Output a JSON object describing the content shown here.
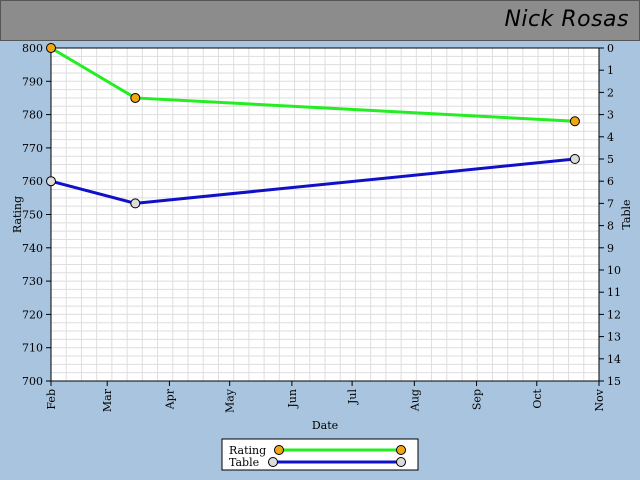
{
  "header": {
    "title": "Nick Rosas"
  },
  "colors": {
    "background": "#a9c4de",
    "plot_background": "#ffffff",
    "rating_line": "#22ee22",
    "table_line": "#1010c8",
    "rating_marker": "#f2a614",
    "table_marker": "#dcdcdc"
  },
  "chart_data": {
    "type": "line",
    "xlabel": "Date",
    "ylabel": "Rating",
    "y2label": "Table",
    "x_ticks": [
      "Feb",
      "Mar",
      "Apr",
      "May",
      "Jun",
      "Jul",
      "Aug",
      "Sep",
      "Oct",
      "Nov"
    ],
    "ylim": [
      700,
      800
    ],
    "y_ticks": [
      800,
      790,
      780,
      770,
      760,
      750,
      740,
      730,
      720,
      710,
      700
    ],
    "y2lim": [
      0,
      15
    ],
    "y2_ticks": [
      0,
      1,
      2,
      3,
      4,
      5,
      6,
      7,
      8,
      9,
      10,
      11,
      12,
      13,
      14,
      15
    ],
    "grid": true,
    "legend_position": "bottom-center",
    "series": [
      {
        "name": "Rating",
        "axis": "left",
        "x": [
          "Feb 1",
          "Mar 15",
          "Oct 20"
        ],
        "values": [
          800,
          785,
          778
        ]
      },
      {
        "name": "Table",
        "axis": "right",
        "x": [
          "Feb 1",
          "Mar 15",
          "Oct 20"
        ],
        "values": [
          6,
          7,
          5
        ]
      }
    ]
  }
}
